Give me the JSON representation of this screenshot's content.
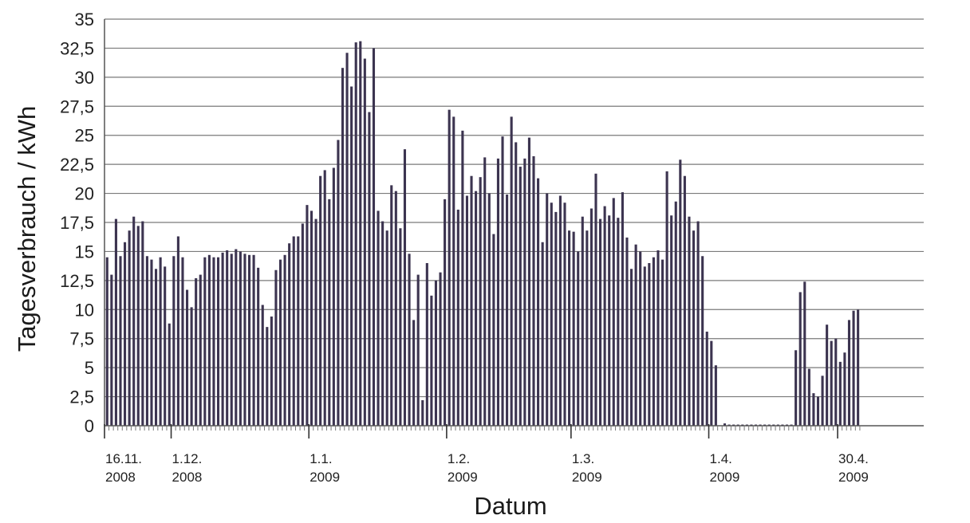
{
  "chart_data": {
    "type": "bar",
    "title": "",
    "xlabel": "Datum",
    "ylabel": "Tagesverbrauch / kWh",
    "ylim": [
      0,
      35
    ],
    "y_ticks": [
      "0",
      "2,5",
      "5",
      "7,5",
      "10",
      "12,5",
      "15",
      "17,5",
      "20",
      "22,5",
      "25",
      "27,5",
      "30",
      "32,5",
      "35"
    ],
    "grid": true,
    "bar_color": "#3c3450",
    "x_start_date": "16.11.2008",
    "x_end_date": "30.4.2009",
    "x_tick_labels": [
      {
        "line1": "16.11.",
        "line2": "2008",
        "day": 0
      },
      {
        "line1": "1.12.",
        "line2": "2008",
        "day": 15
      },
      {
        "line1": "1.1.",
        "line2": "2009",
        "day": 46
      },
      {
        "line1": "1.2.",
        "line2": "2009",
        "day": 77
      },
      {
        "line1": "1.3.",
        "line2": "2009",
        "day": 105
      },
      {
        "line1": "1.4.",
        "line2": "2009",
        "day": 136
      },
      {
        "line1": "30.4.",
        "line2": "2009",
        "day": 165
      }
    ],
    "values": [
      14.5,
      13.0,
      17.8,
      14.6,
      15.8,
      16.8,
      18.0,
      17.2,
      17.6,
      14.6,
      14.3,
      13.5,
      14.5,
      13.7,
      8.8,
      14.6,
      16.3,
      14.5,
      11.7,
      10.2,
      12.7,
      13.0,
      14.5,
      14.7,
      14.5,
      14.5,
      14.9,
      15.1,
      14.8,
      15.2,
      15.0,
      14.8,
      14.7,
      14.7,
      13.6,
      10.4,
      8.5,
      9.4,
      13.4,
      14.3,
      14.7,
      15.7,
      16.3,
      16.3,
      17.4,
      19.0,
      18.5,
      17.8,
      21.5,
      22.0,
      19.5,
      22.2,
      24.6,
      30.8,
      32.1,
      29.2,
      33.0,
      33.1,
      31.6,
      27.0,
      32.5,
      18.5,
      17.6,
      16.8,
      20.7,
      20.2,
      17.0,
      23.8,
      14.8,
      9.1,
      13.0,
      2.2,
      14.0,
      11.2,
      12.5,
      13.2,
      19.5,
      27.2,
      26.6,
      18.6,
      25.4,
      19.8,
      21.5,
      20.2,
      21.4,
      23.1,
      20.0,
      16.5,
      23.0,
      24.9,
      19.9,
      26.6,
      24.4,
      22.3,
      23.0,
      24.8,
      23.2,
      21.3,
      15.8,
      20.0,
      19.2,
      18.4,
      19.8,
      19.2,
      16.8,
      16.7,
      15.0,
      18.0,
      16.8,
      18.7,
      21.7,
      17.8,
      18.9,
      18.1,
      19.6,
      17.9,
      20.1,
      16.2,
      13.5,
      15.6,
      15.0,
      13.7,
      14.0,
      14.5,
      15.1,
      14.3,
      21.9,
      18.1,
      19.3,
      22.9,
      21.5,
      18.0,
      16.8,
      17.6,
      14.6,
      8.1,
      7.3,
      5.2,
      0,
      0.2,
      0.1,
      0.1,
      0.1,
      0.1,
      0.1,
      0.1,
      0.1,
      0.1,
      0.1,
      0.1,
      0.1,
      0.1,
      0.1,
      0.1,
      0.1,
      6.5,
      11.5,
      12.4,
      4.9,
      2.8,
      2.5,
      4.3,
      8.7,
      7.3,
      7.5,
      5.5,
      6.3,
      9.1,
      9.9,
      10.0
    ]
  }
}
